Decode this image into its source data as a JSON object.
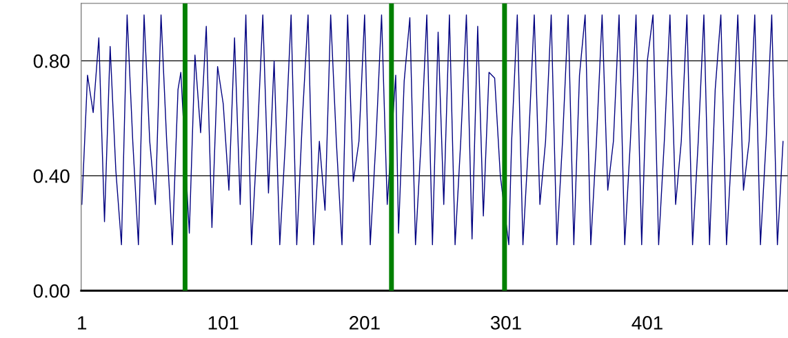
{
  "chart_data": {
    "type": "line",
    "x": [
      1,
      5,
      9,
      13,
      17,
      21,
      25,
      29,
      33,
      37,
      41,
      45,
      49,
      53,
      57,
      61,
      65,
      69,
      71,
      77,
      81,
      85,
      89,
      93,
      97,
      101,
      105,
      109,
      113,
      117,
      121,
      125,
      129,
      133,
      137,
      141,
      145,
      149,
      153,
      157,
      161,
      165,
      169,
      173,
      177,
      181,
      185,
      189,
      193,
      197,
      201,
      205,
      209,
      213,
      217,
      223,
      225,
      229,
      233,
      237,
      241,
      245,
      249,
      253,
      257,
      261,
      265,
      269,
      273,
      277,
      281,
      285,
      289,
      293,
      297,
      303,
      305,
      309,
      313,
      317,
      321,
      325,
      329,
      333,
      337,
      341,
      345,
      349,
      353,
      357,
      361,
      365,
      369,
      373,
      377,
      381,
      385,
      389,
      393,
      397,
      401,
      405,
      409,
      413,
      417,
      421,
      425,
      429,
      433,
      437,
      441,
      445,
      449,
      453,
      457,
      461,
      465,
      469,
      473,
      477,
      481,
      485,
      489,
      493,
      497
    ],
    "series": [
      {
        "color": "#000080",
        "values": [
          0.3,
          0.75,
          0.62,
          0.88,
          0.24,
          0.85,
          0.42,
          0.16,
          0.96,
          0.52,
          0.16,
          0.96,
          0.52,
          0.3,
          0.96,
          0.52,
          0.16,
          0.7,
          0.76,
          0.2,
          0.82,
          0.55,
          0.92,
          0.22,
          0.78,
          0.65,
          0.35,
          0.88,
          0.3,
          0.96,
          0.16,
          0.52,
          0.96,
          0.34,
          0.8,
          0.16,
          0.52,
          0.96,
          0.16,
          0.6,
          0.96,
          0.16,
          0.52,
          0.28,
          0.96,
          0.52,
          0.16,
          0.96,
          0.38,
          0.52,
          0.96,
          0.16,
          0.52,
          0.96,
          0.3,
          0.75,
          0.2,
          0.73,
          0.95,
          0.16,
          0.52,
          0.96,
          0.16,
          0.9,
          0.3,
          0.96,
          0.16,
          0.52,
          0.96,
          0.18,
          0.92,
          0.26,
          0.76,
          0.74,
          0.4,
          0.16,
          0.52,
          0.96,
          0.16,
          0.52,
          0.96,
          0.3,
          0.52,
          0.96,
          0.16,
          0.52,
          0.96,
          0.16,
          0.75,
          0.96,
          0.16,
          0.52,
          0.96,
          0.35,
          0.52,
          0.96,
          0.16,
          0.52,
          0.96,
          0.16,
          0.8,
          0.96,
          0.16,
          0.52,
          0.96,
          0.3,
          0.52,
          0.96,
          0.16,
          0.52,
          0.96,
          0.16,
          0.7,
          0.96,
          0.16,
          0.52,
          0.96,
          0.35,
          0.52,
          0.96,
          0.16,
          0.52,
          0.96,
          0.16,
          0.52
        ]
      }
    ],
    "xlim": [
      0.5,
      500.5
    ],
    "xticks": [
      1,
      101,
      201,
      301,
      401
    ],
    "ylim": [
      0,
      1.0
    ],
    "yticks": [
      {
        "value": 0,
        "label": "0.00"
      },
      {
        "value": 0.4,
        "label": "0.40"
      },
      {
        "value": 0.8,
        "label": "0.80"
      }
    ],
    "grid": "y",
    "ref_lines": [
      {
        "axis": "x",
        "value": 74,
        "color": "#008000"
      },
      {
        "axis": "x",
        "value": 220,
        "color": "#008000"
      },
      {
        "axis": "x",
        "value": 300,
        "color": "#008000"
      }
    ]
  }
}
